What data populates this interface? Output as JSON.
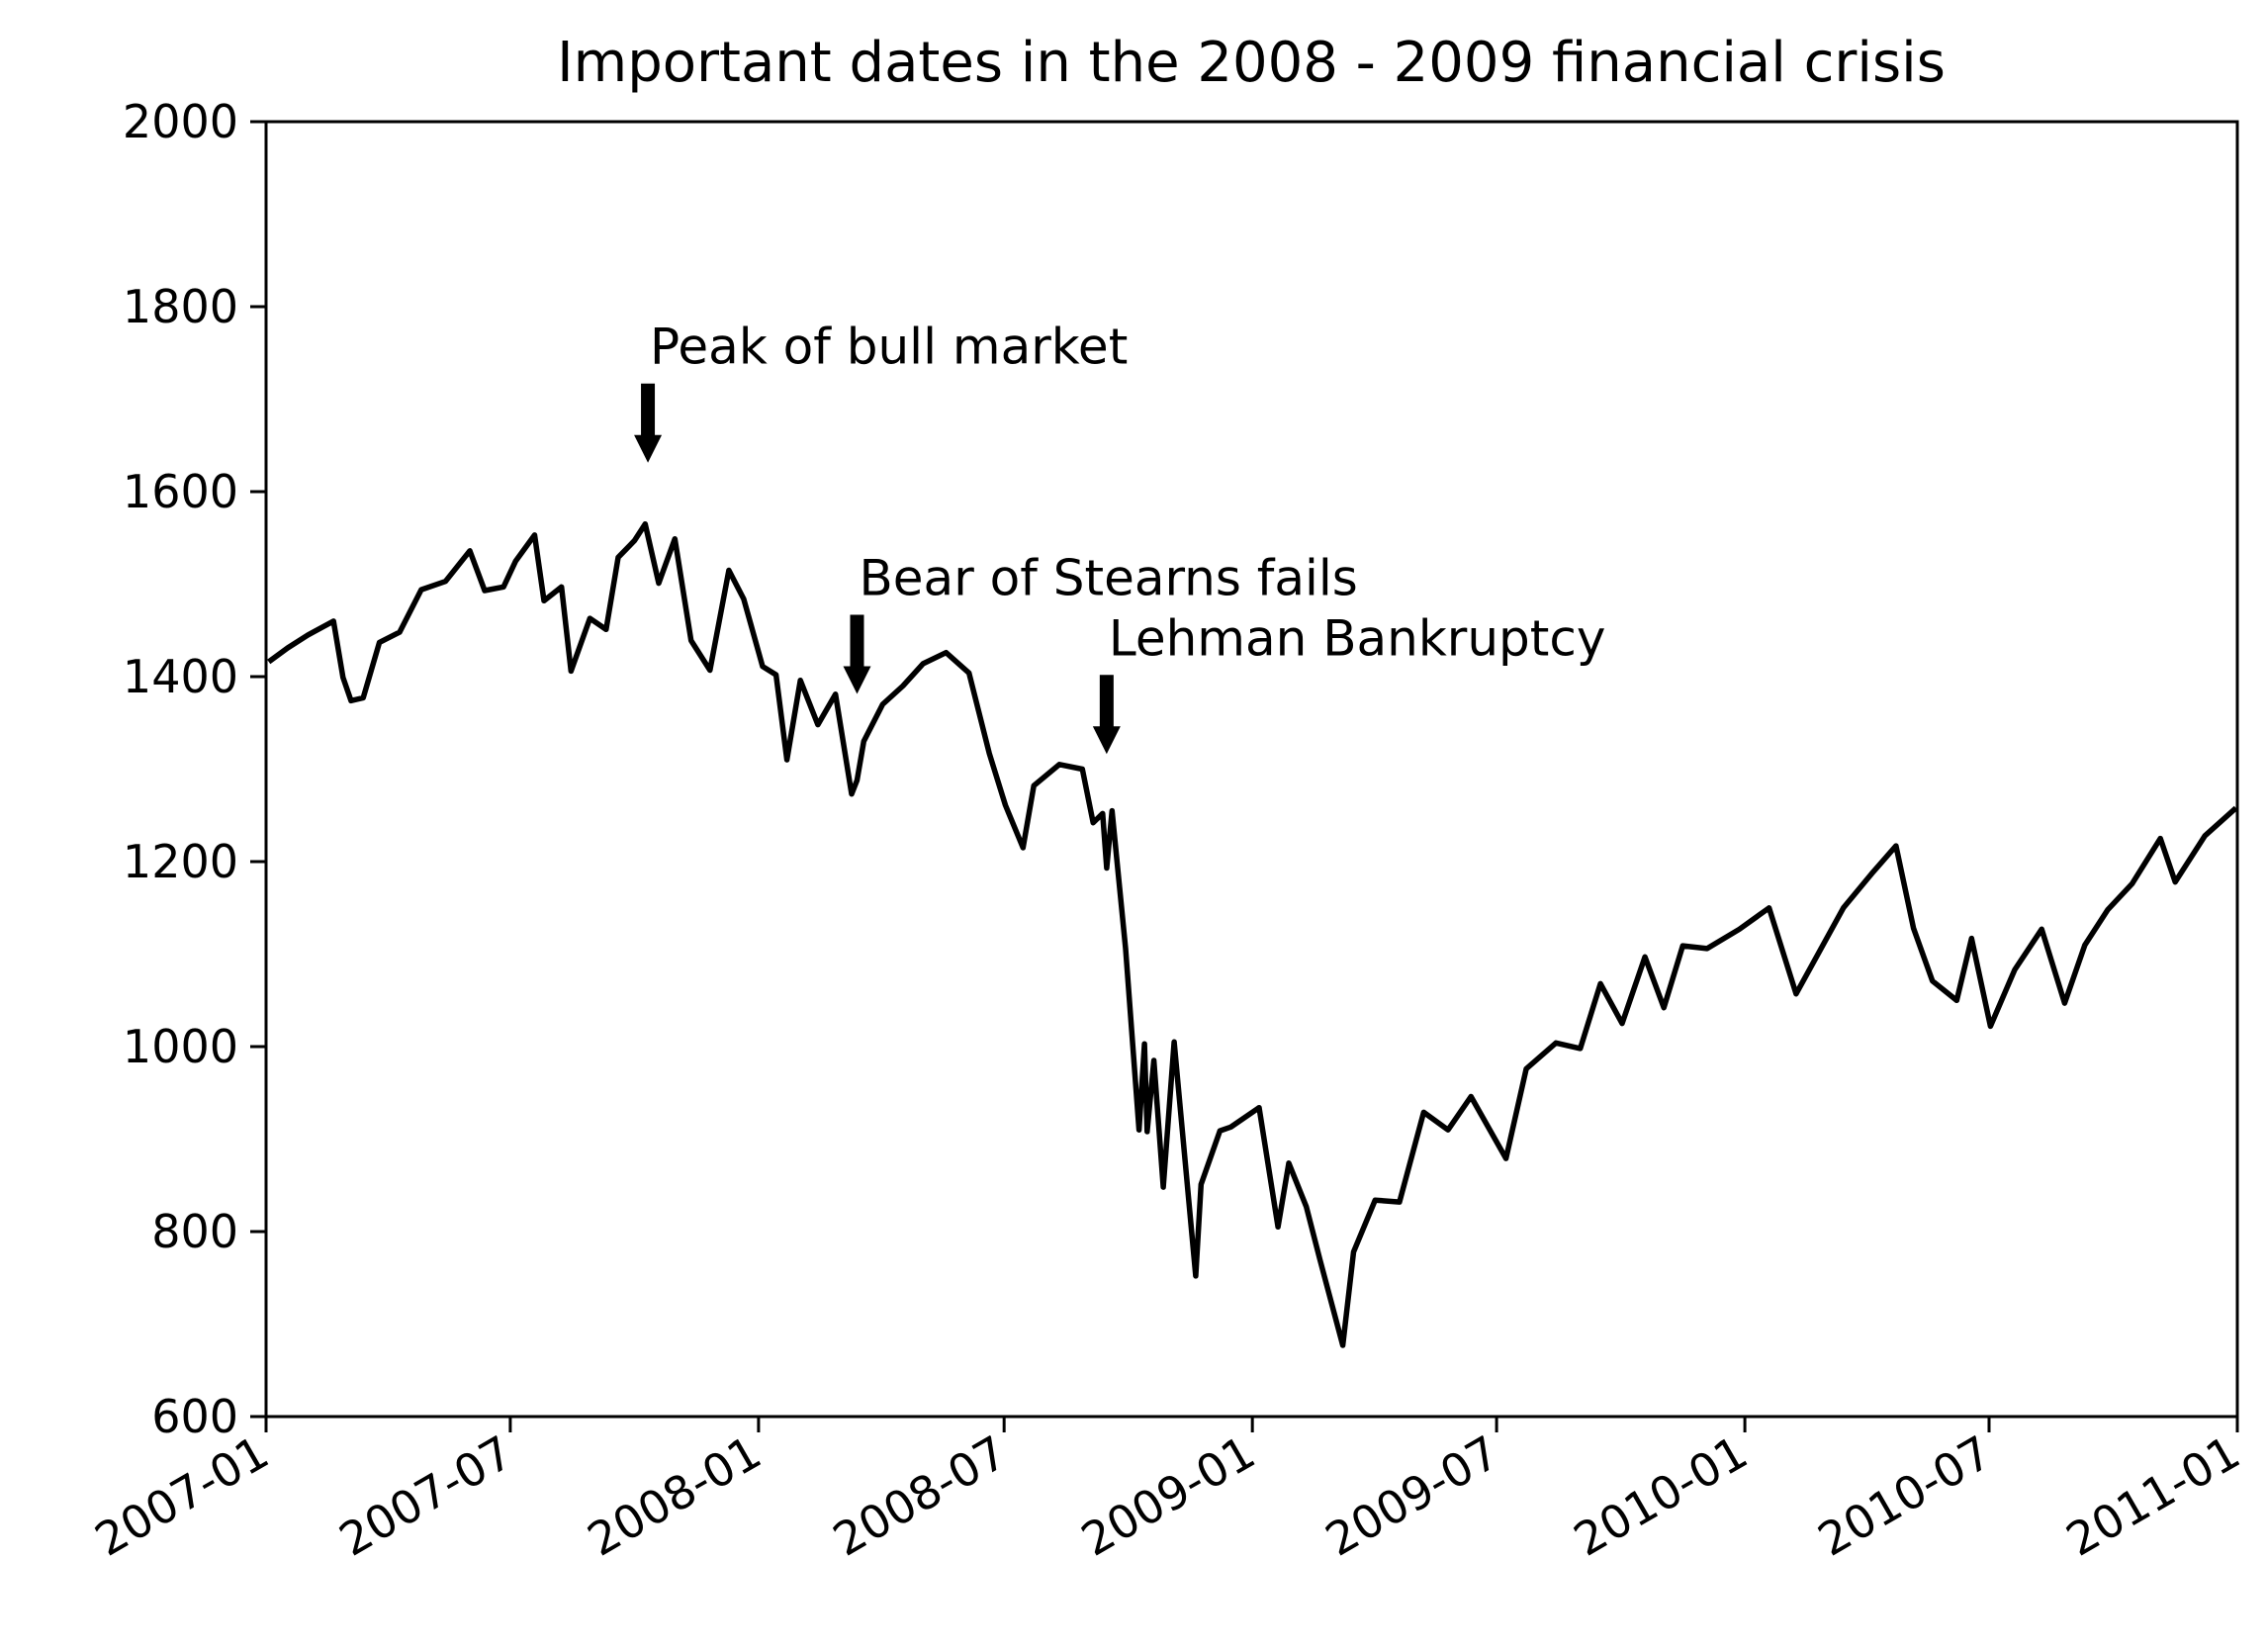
{
  "chart_data": {
    "type": "line",
    "title": "Important dates in the 2008 - 2009 financial crisis",
    "xlabel": "",
    "ylabel": "",
    "xlim": [
      "2007-01-01",
      "2011-01-01"
    ],
    "ylim": [
      600,
      2000
    ],
    "x_ticks": [
      "2007-01",
      "2007-07",
      "2008-01",
      "2008-07",
      "2009-01",
      "2009-07",
      "2010-01",
      "2010-07",
      "2011-01"
    ],
    "y_ticks": [
      600,
      800,
      1000,
      1200,
      1400,
      1600,
      1800,
      2000
    ],
    "grid": false,
    "series": [
      {
        "color": "#000000",
        "points": [
          [
            "2007-01-03",
            1416
          ],
          [
            "2007-01-17",
            1431
          ],
          [
            "2007-02-01",
            1445
          ],
          [
            "2007-02-20",
            1460
          ],
          [
            "2007-02-27",
            1399
          ],
          [
            "2007-03-05",
            1374
          ],
          [
            "2007-03-14",
            1377
          ],
          [
            "2007-03-26",
            1437
          ],
          [
            "2007-04-10",
            1448
          ],
          [
            "2007-04-26",
            1494
          ],
          [
            "2007-05-14",
            1503
          ],
          [
            "2007-06-01",
            1536
          ],
          [
            "2007-06-12",
            1493
          ],
          [
            "2007-06-26",
            1497
          ],
          [
            "2007-07-05",
            1525
          ],
          [
            "2007-07-19",
            1553
          ],
          [
            "2007-07-26",
            1482
          ],
          [
            "2007-08-08",
            1497
          ],
          [
            "2007-08-15",
            1406
          ],
          [
            "2007-08-29",
            1463
          ],
          [
            "2007-09-10",
            1451
          ],
          [
            "2007-09-19",
            1529
          ],
          [
            "2007-10-01",
            1547
          ],
          [
            "2007-10-09",
            1565
          ],
          [
            "2007-10-19",
            1501
          ],
          [
            "2007-10-31",
            1549
          ],
          [
            "2007-11-12",
            1439
          ],
          [
            "2007-11-26",
            1407
          ],
          [
            "2007-12-10",
            1515
          ],
          [
            "2007-12-21",
            1484
          ],
          [
            "2008-01-04",
            1411
          ],
          [
            "2008-01-14",
            1402
          ],
          [
            "2008-01-22",
            1310
          ],
          [
            "2008-02-01",
            1396
          ],
          [
            "2008-02-14",
            1348
          ],
          [
            "2008-02-27",
            1381
          ],
          [
            "2008-03-10",
            1273
          ],
          [
            "2008-03-14",
            1288
          ],
          [
            "2008-03-19",
            1330
          ],
          [
            "2008-04-02",
            1370
          ],
          [
            "2008-04-17",
            1390
          ],
          [
            "2008-05-02",
            1414
          ],
          [
            "2008-05-19",
            1426
          ],
          [
            "2008-06-05",
            1404
          ],
          [
            "2008-06-20",
            1317
          ],
          [
            "2008-07-02",
            1261
          ],
          [
            "2008-07-15",
            1215
          ],
          [
            "2008-07-23",
            1282
          ],
          [
            "2008-08-11",
            1305
          ],
          [
            "2008-08-28",
            1300
          ],
          [
            "2008-09-05",
            1242
          ],
          [
            "2008-09-12",
            1252
          ],
          [
            "2008-09-15",
            1193
          ],
          [
            "2008-09-19",
            1255
          ],
          [
            "2008-09-29",
            1106
          ],
          [
            "2008-10-09",
            910
          ],
          [
            "2008-10-13",
            1003
          ],
          [
            "2008-10-15",
            908
          ],
          [
            "2008-10-20",
            985
          ],
          [
            "2008-10-27",
            848
          ],
          [
            "2008-11-04",
            1005
          ],
          [
            "2008-11-20",
            752
          ],
          [
            "2008-11-24",
            851
          ],
          [
            "2008-12-08",
            909
          ],
          [
            "2008-12-16",
            913
          ],
          [
            "2009-01-06",
            934
          ],
          [
            "2009-01-20",
            805
          ],
          [
            "2009-01-28",
            874
          ],
          [
            "2009-02-10",
            827
          ],
          [
            "2009-02-20",
            770
          ],
          [
            "2009-03-09",
            677
          ],
          [
            "2009-03-17",
            778
          ],
          [
            "2009-04-02",
            834
          ],
          [
            "2009-04-20",
            832
          ],
          [
            "2009-05-08",
            929
          ],
          [
            "2009-05-26",
            910
          ],
          [
            "2009-06-12",
            946
          ],
          [
            "2009-07-08",
            879
          ],
          [
            "2009-07-23",
            976
          ],
          [
            "2009-08-14",
            1004
          ],
          [
            "2009-09-01",
            998
          ],
          [
            "2009-09-16",
            1068
          ],
          [
            "2009-10-02",
            1025
          ],
          [
            "2009-10-19",
            1097
          ],
          [
            "2009-11-02",
            1042
          ],
          [
            "2009-11-16",
            1109
          ],
          [
            "2009-12-04",
            1106
          ],
          [
            "2009-12-28",
            1127
          ],
          [
            "2010-01-19",
            1150
          ],
          [
            "2010-02-08",
            1057
          ],
          [
            "2010-02-25",
            1102
          ],
          [
            "2010-03-15",
            1150
          ],
          [
            "2010-04-05",
            1187
          ],
          [
            "2010-04-23",
            1217
          ],
          [
            "2010-05-06",
            1128
          ],
          [
            "2010-05-20",
            1071
          ],
          [
            "2010-06-07",
            1050
          ],
          [
            "2010-06-18",
            1117
          ],
          [
            "2010-07-02",
            1022
          ],
          [
            "2010-07-20",
            1083
          ],
          [
            "2010-08-09",
            1127
          ],
          [
            "2010-08-26",
            1047
          ],
          [
            "2010-09-10",
            1110
          ],
          [
            "2010-09-27",
            1148
          ],
          [
            "2010-10-15",
            1176
          ],
          [
            "2010-11-05",
            1225
          ],
          [
            "2010-11-16",
            1178
          ],
          [
            "2010-12-08",
            1228
          ],
          [
            "2010-12-31",
            1258
          ]
        ]
      }
    ],
    "annotations": [
      {
        "text": "Peak of bull market",
        "date": "2007-10-11",
        "value": 1565
      },
      {
        "text": "Bear of Stearns fails",
        "date": "2008-03-14",
        "value": 1315
      },
      {
        "text": "Lehman Bankruptcy",
        "date": "2008-09-15",
        "value": 1250
      }
    ]
  }
}
